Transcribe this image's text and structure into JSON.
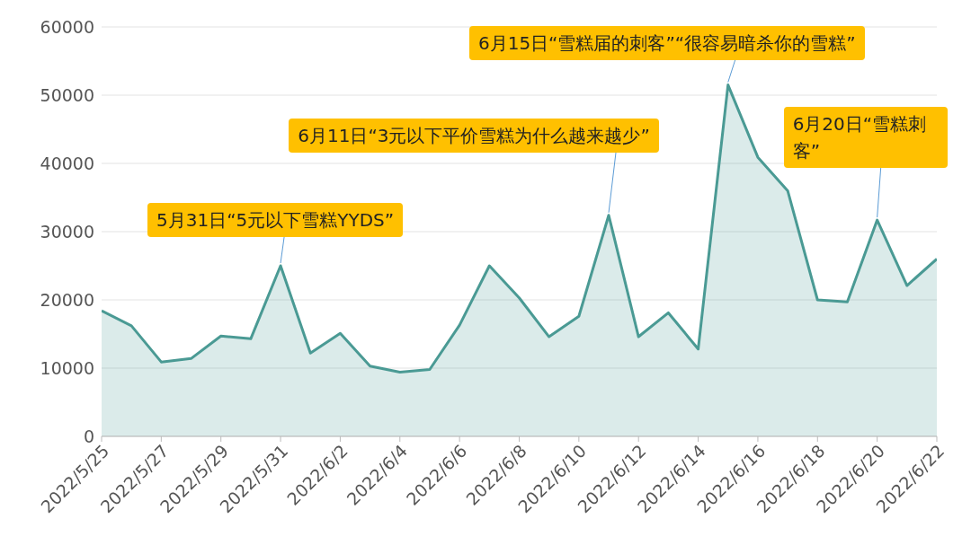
{
  "chart_data": {
    "type": "area",
    "x": [
      "2022-05-25",
      "2022-05-26",
      "2022-05-27",
      "2022-05-28",
      "2022-05-29",
      "2022-05-30",
      "2022-05-31",
      "2022-06-01",
      "2022-06-02",
      "2022-06-03",
      "2022-06-04",
      "2022-06-05",
      "2022-06-06",
      "2022-06-07",
      "2022-06-08",
      "2022-06-09",
      "2022-06-10",
      "2022-06-11",
      "2022-06-12",
      "2022-06-13",
      "2022-06-14",
      "2022-06-15",
      "2022-06-16",
      "2022-06-17",
      "2022-06-18",
      "2022-06-19",
      "2022-06-20",
      "2022-06-21",
      "2022-06-22"
    ],
    "series": [
      {
        "color": "#4a9a94",
        "values": [
          18400,
          16200,
          10900,
          11400,
          14700,
          14300,
          25000,
          12200,
          15100,
          10300,
          9400,
          9800,
          16300,
          25000,
          20300,
          14600,
          17600,
          32400,
          14600,
          18100,
          12800,
          51500,
          40900,
          36000,
          20000,
          19700,
          31700,
          22100,
          26000
        ]
      }
    ],
    "xlim": [
      "2022-05-25",
      "2022-06-22"
    ],
    "xticks": [
      {
        "value": "2022-05-25",
        "label": "2022/5/25"
      },
      {
        "value": "2022-05-27",
        "label": "2022/5/27"
      },
      {
        "value": "2022-05-29",
        "label": "2022/5/29"
      },
      {
        "value": "2022-05-31",
        "label": "2022/5/31"
      },
      {
        "value": "2022-06-02",
        "label": "2022/6/2"
      },
      {
        "value": "2022-06-04",
        "label": "2022/6/4"
      },
      {
        "value": "2022-06-06",
        "label": "2022/6/6"
      },
      {
        "value": "2022-06-08",
        "label": "2022/6/8"
      },
      {
        "value": "2022-06-10",
        "label": "2022/6/10"
      },
      {
        "value": "2022-06-12",
        "label": "2022/6/12"
      },
      {
        "value": "2022-06-14",
        "label": "2022/6/14"
      },
      {
        "value": "2022-06-16",
        "label": "2022/6/16"
      },
      {
        "value": "2022-06-18",
        "label": "2022/6/18"
      },
      {
        "value": "2022-06-20",
        "label": "2022/6/20"
      },
      {
        "value": "2022-06-22",
        "label": "2022/6/22"
      }
    ],
    "ylim": [
      0,
      60000
    ],
    "yticks": [
      0,
      10000,
      20000,
      30000,
      40000,
      50000,
      60000
    ],
    "grid": "y",
    "legend": false,
    "marker": "none",
    "line_style": "solid",
    "annotations": [
      {
        "text": "5月31日“5元以下雪糕YYDS”",
        "x": "2022-05-31",
        "y": 25000
      },
      {
        "text": "6月11日“3元以下平价雪糕为什么越来越少”",
        "x": "2022-06-11",
        "y": 32400
      },
      {
        "text": "6月15日“雪糕届的刺客”“很容易暗杀你的雪糕”",
        "x": "2022-06-15",
        "y": 51500
      },
      {
        "text": "6月20日“雪糕刺客”",
        "x": "2022-06-20",
        "y": 31700
      }
    ]
  }
}
